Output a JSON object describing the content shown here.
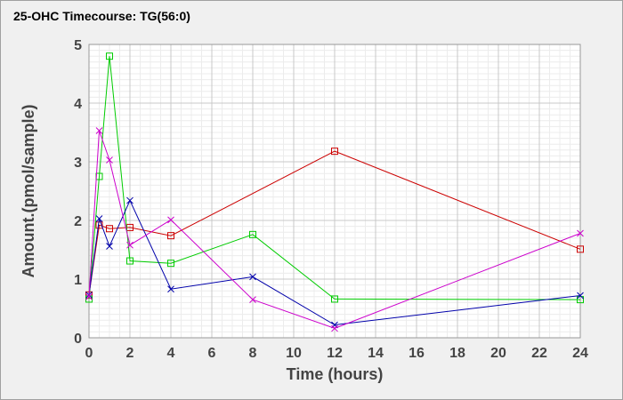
{
  "chart_data": {
    "type": "line",
    "title": "25-OHC Timecourse: TG(56:0)",
    "xlabel": "Time (hours)",
    "ylabel": "Amount.(pmol/sample)",
    "xlim": [
      0,
      24
    ],
    "ylim": [
      0,
      5
    ],
    "x_ticks": [
      "0",
      "2",
      "4",
      "6",
      "8",
      "10",
      "12",
      "14",
      "16",
      "18",
      "20",
      "22",
      "24"
    ],
    "y_ticks": [
      "0",
      "1",
      "2",
      "3",
      "4",
      "5"
    ],
    "grid": true,
    "series": [
      {
        "color": "#cc0000",
        "marker": "square",
        "x": [
          0,
          0.5,
          1,
          2,
          4,
          12,
          24
        ],
        "y": [
          0.73,
          1.92,
          1.86,
          1.88,
          1.74,
          3.18,
          1.51
        ]
      },
      {
        "color": "#00cc00",
        "marker": "square",
        "x": [
          0,
          0.5,
          1,
          2,
          4,
          8,
          12,
          24
        ],
        "y": [
          0.66,
          2.75,
          4.8,
          1.31,
          1.27,
          1.76,
          0.66,
          0.65
        ]
      },
      {
        "color": "#0000aa",
        "marker": "x",
        "x": [
          0,
          0.5,
          1,
          2,
          4,
          8,
          12,
          24
        ],
        "y": [
          0.73,
          2.03,
          1.56,
          2.34,
          0.83,
          1.04,
          0.22,
          0.72
        ]
      },
      {
        "color": "#cc00cc",
        "marker": "x",
        "x": [
          0,
          0.5,
          1,
          2,
          4,
          8,
          12,
          24
        ],
        "y": [
          0.7,
          3.53,
          3.03,
          1.58,
          2.01,
          0.65,
          0.16,
          1.78
        ]
      }
    ]
  }
}
